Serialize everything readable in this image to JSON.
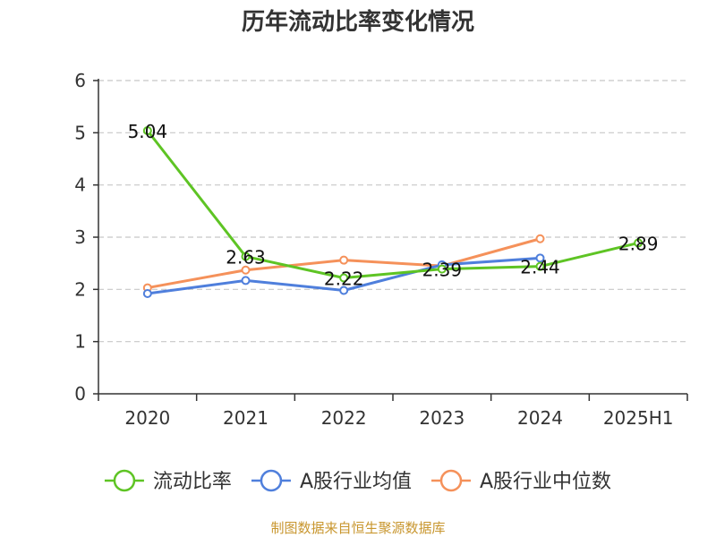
{
  "chart_data": {
    "type": "line",
    "title": "历年流动比率变化情况",
    "xlabel": "",
    "ylabel": "",
    "categories": [
      "2020",
      "2021",
      "2022",
      "2023",
      "2024",
      "2025H1"
    ],
    "ylim": [
      0,
      6
    ],
    "yticks": [
      "0",
      "1",
      "2",
      "3",
      "4",
      "5",
      "6"
    ],
    "grid": true,
    "legend_position": "bottom",
    "series": [
      {
        "name": "流动比率",
        "color": "#5ec424",
        "values": [
          5.04,
          2.63,
          2.22,
          2.39,
          2.44,
          2.89
        ],
        "labels": [
          "5.04",
          "2.63",
          "2.22",
          "2.39",
          "2.44",
          "2.89"
        ]
      },
      {
        "name": "A股行业均值",
        "color": "#4f7fdc",
        "values": [
          1.92,
          2.17,
          1.98,
          2.47,
          2.6,
          null
        ]
      },
      {
        "name": "A股行业中位数",
        "color": "#f5915a",
        "values": [
          2.03,
          2.37,
          2.56,
          2.45,
          2.97,
          null
        ]
      }
    ]
  },
  "footer": {
    "source": "制图数据来自恒生聚源数据库"
  }
}
